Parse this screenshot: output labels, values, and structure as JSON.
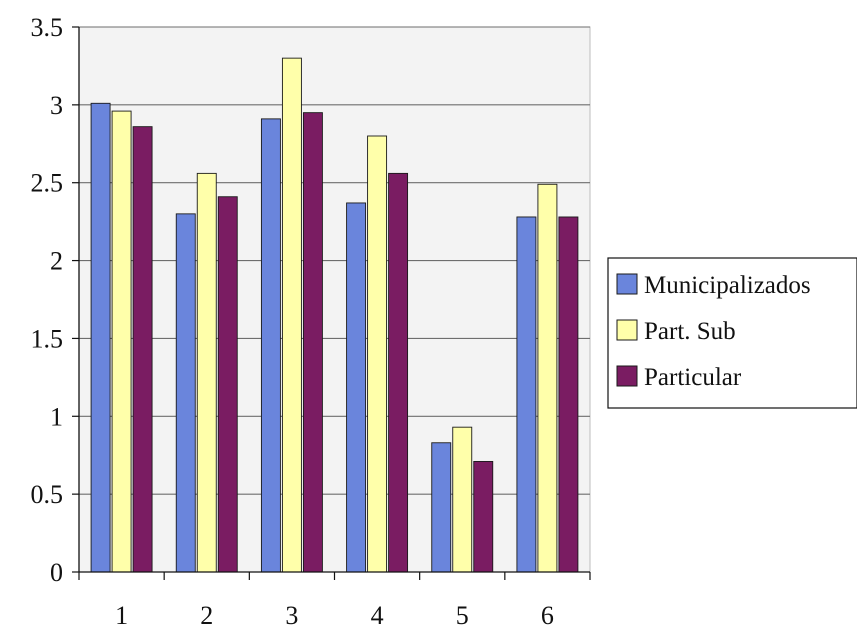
{
  "chart_data": {
    "type": "bar",
    "categories": [
      "1",
      "2",
      "3",
      "4",
      "5",
      "6"
    ],
    "series": [
      {
        "name": "Municipalizados",
        "color": "#6a85dc",
        "values": [
          3.01,
          2.3,
          2.91,
          2.37,
          0.83,
          2.28
        ]
      },
      {
        "name": "Part. Sub",
        "color": "#ffffaa",
        "values": [
          2.96,
          2.56,
          3.3,
          2.8,
          0.93,
          2.49
        ]
      },
      {
        "name": "Particular",
        "color": "#7a1c62",
        "values": [
          2.86,
          2.41,
          2.95,
          2.56,
          0.71,
          2.28
        ]
      }
    ],
    "yticks": [
      "0",
      "0.5",
      "1",
      "1.5",
      "2",
      "2.5",
      "3",
      "3.5"
    ],
    "ylim": [
      0,
      3.5
    ],
    "title": "",
    "xlabel": "",
    "ylabel": "",
    "grid": true,
    "legend_position": "right",
    "plot_background": "#f3f3f3"
  }
}
